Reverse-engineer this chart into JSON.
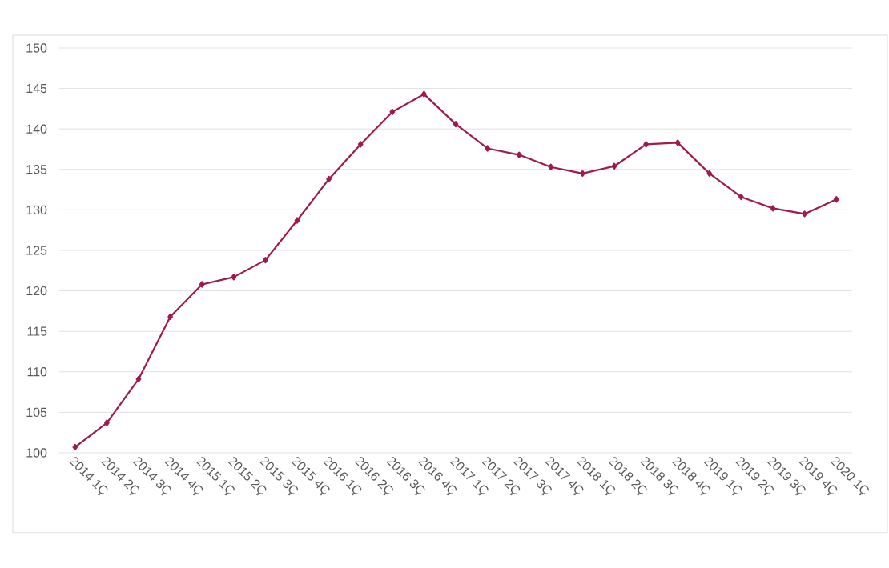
{
  "chart_data": {
    "type": "line",
    "categories": [
      "2014 1Ç",
      "2014 2Ç",
      "2014 3Ç",
      "2014 4Ç",
      "2015 1Ç",
      "2015 2Ç",
      "2015 3Ç",
      "2015 4Ç",
      "2016 1Ç",
      "2016 2Ç",
      "2016 3Ç",
      "2016 4Ç",
      "2017 1Ç",
      "2017 2Ç",
      "2017 3Ç",
      "2017 4Ç",
      "2018 1Ç",
      "2018 2Ç",
      "2018 3Ç",
      "2018 4Ç",
      "2019 1Ç",
      "2019 2Ç",
      "2019 3Ç",
      "2019 4Ç",
      "2020 1Ç"
    ],
    "values": [
      100.7,
      103.7,
      109.1,
      116.8,
      120.8,
      121.7,
      123.8,
      128.7,
      133.8,
      138.1,
      142.1,
      144.3,
      140.6,
      137.6,
      136.8,
      135.3,
      134.5,
      135.4,
      138.1,
      138.3,
      134.5,
      131.6,
      130.2,
      129.5,
      131.3
    ],
    "color": "#9e1a4f",
    "ylim": [
      100,
      150
    ],
    "yticks": [
      100,
      105,
      110,
      115,
      120,
      125,
      130,
      135,
      140,
      145,
      150
    ],
    "grid": "y",
    "marker": "diamond",
    "line_style": "solid"
  }
}
